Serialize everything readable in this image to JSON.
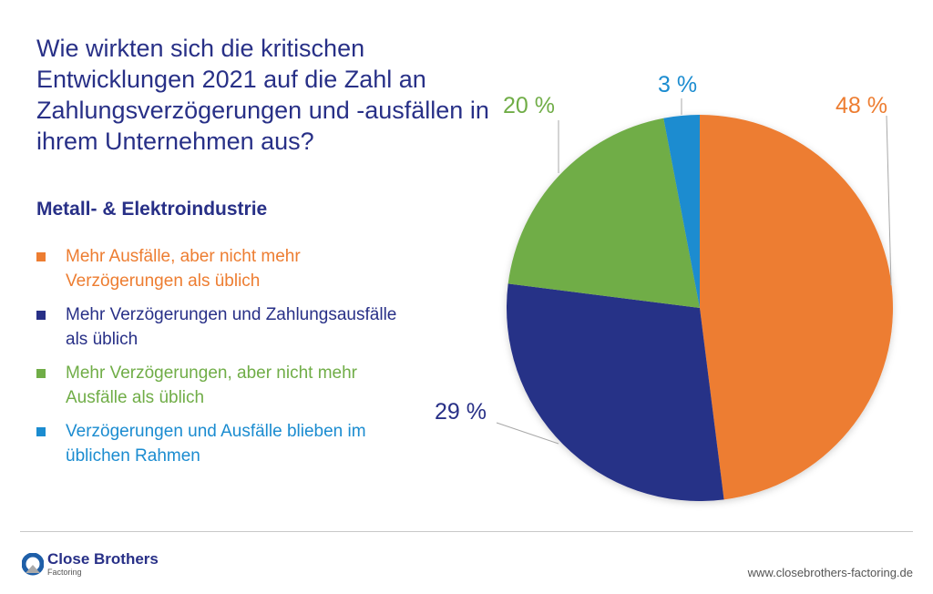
{
  "title": "Wie wirkten sich die kritischen Entwicklungen 2021 auf die Zahl an Zahlungsverzögerungen und -ausfällen in ihrem Unternehmen aus?",
  "subtitle": "Metall- & Elektroindustrie",
  "chart_data": {
    "type": "pie",
    "start": "top, clockwise",
    "slices": [
      {
        "label": "Mehr Ausfälle, aber nicht mehr Verzögerungen als üblich",
        "value": 48,
        "value_label": "48 %",
        "color": "#ED7D31"
      },
      {
        "label": "Mehr Verzögerungen und Zahlungsausfälle als üblich",
        "value": 29,
        "value_label": "29 %",
        "color": "#283087"
      },
      {
        "label": "Mehr Verzögerungen, aber nicht mehr Ausfälle als üblich",
        "value": 20,
        "value_label": "20 %",
        "color": "#70AD47"
      },
      {
        "label": "Verzögerungen und Ausfälle blieben im üblichen Rahmen",
        "value": 3,
        "value_label": "3 %",
        "color": "#1B8CD0"
      }
    ],
    "legend_placement": "left"
  },
  "footer": {
    "logo_name": "Close Brothers",
    "logo_sub": "Factoring",
    "url": "www.closebrothers-factoring.de"
  }
}
